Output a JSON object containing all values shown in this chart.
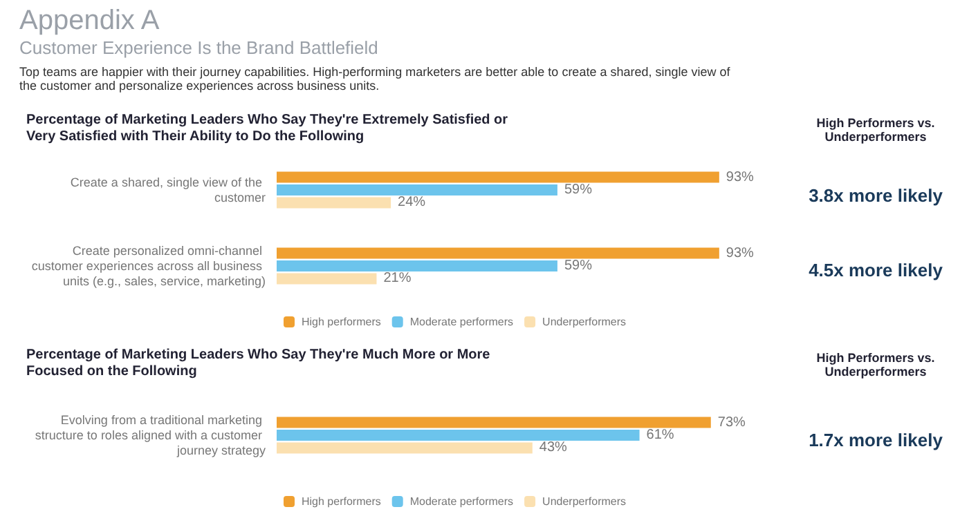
{
  "chart_data": [
    {
      "type": "other",
      "title": "Appendix A",
      "subtitle": "Customer Experience Is the Brand Battlefield",
      "annotations": [
        "Top teams are happier with their journey capabilities. High-performing marketers are better able to create a shared, single view of the customer and personalize experiences across business units."
      ]
    },
    {
      "type": "bar",
      "orientation": "horizontal",
      "title": "Percentage of Marketing Leaders Who Say They're Extremely Satisfied or Very Satisfied with Their Ability to Do the Following",
      "categories": [
        "Create a shared, single view of the customer",
        "Create personalized omni-channel customer experiences across all business units (e.g., sales, service, marketing)"
      ],
      "series": [
        {
          "name": "High performers",
          "color": "#f0a030",
          "values": [
            93,
            93
          ],
          "value_labels": [
            "93%",
            "93%"
          ]
        },
        {
          "name": "Moderate performers",
          "color": "#6cc4ec",
          "values": [
            59,
            59
          ],
          "value_labels": [
            "59%",
            "59%"
          ]
        },
        {
          "name": "Underperformers",
          "color": "#fbe0b0",
          "values": [
            24,
            21
          ],
          "value_labels": [
            "24%",
            "21%"
          ]
        }
      ],
      "legend": "bottom",
      "annotations": [
        "High Performers vs. Underperformers",
        "3.8x more likely",
        "4.5x more likely"
      ]
    },
    {
      "type": "bar",
      "orientation": "horizontal",
      "title": "Percentage of Marketing Leaders Who Say They're Much More or More Focused on the Following",
      "categories": [
        "Evolving from a traditional marketing structure to roles aligned with a customer journey strategy"
      ],
      "series": [
        {
          "name": "High performers",
          "color": "#f0a030",
          "values": [
            73
          ],
          "value_labels": [
            "73%"
          ]
        },
        {
          "name": "Moderate performers",
          "color": "#6cc4ec",
          "values": [
            61
          ],
          "value_labels": [
            "61%"
          ]
        },
        {
          "name": "Underperformers",
          "color": "#fbe0b0",
          "values": [
            43
          ],
          "value_labels": [
            "43%"
          ]
        }
      ],
      "legend": "bottom",
      "annotations": [
        "High Performers vs. Underperformers",
        "1.7x more likely"
      ]
    }
  ]
}
